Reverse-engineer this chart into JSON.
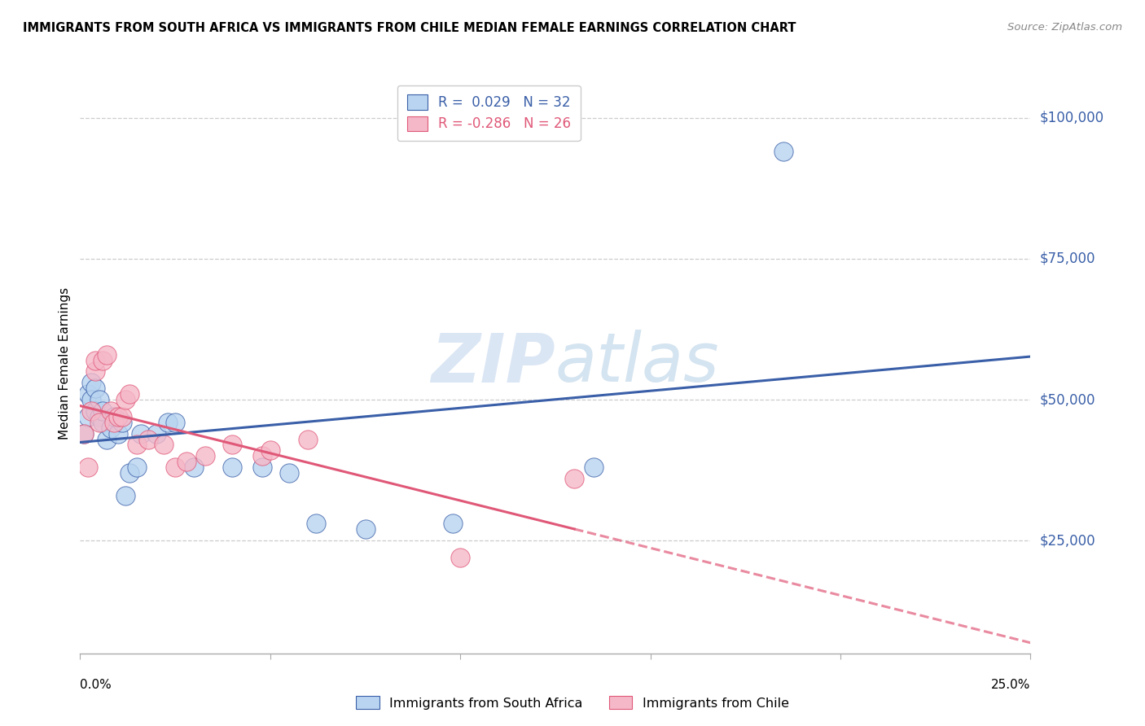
{
  "title": "IMMIGRANTS FROM SOUTH AFRICA VS IMMIGRANTS FROM CHILE MEDIAN FEMALE EARNINGS CORRELATION CHART",
  "source": "Source: ZipAtlas.com",
  "ylabel": "Median Female Earnings",
  "ytick_labels": [
    "$25,000",
    "$50,000",
    "$75,000",
    "$100,000"
  ],
  "ytick_values": [
    25000,
    50000,
    75000,
    100000
  ],
  "ymin": 5000,
  "ymax": 108000,
  "xmin": 0.0,
  "xmax": 0.25,
  "watermark_zip": "ZIP",
  "watermark_atlas": "atlas",
  "legend_line1": "R =  0.029   N = 32",
  "legend_line2": "R = -0.286   N = 26",
  "color_blue": "#b8d4f0",
  "color_pink": "#f5b8c8",
  "trendline_blue": "#3a5fa8",
  "trendline_pink": "#e05878",
  "sa_x": [
    0.001,
    0.002,
    0.002,
    0.003,
    0.003,
    0.004,
    0.004,
    0.005,
    0.005,
    0.006,
    0.006,
    0.007,
    0.008,
    0.009,
    0.01,
    0.011,
    0.012,
    0.013,
    0.015,
    0.016,
    0.02,
    0.023,
    0.025,
    0.03,
    0.04,
    0.048,
    0.055,
    0.062,
    0.075,
    0.098,
    0.135,
    0.185
  ],
  "sa_y": [
    44000,
    51000,
    47000,
    53000,
    50000,
    48000,
    52000,
    47000,
    50000,
    46000,
    48000,
    43000,
    45000,
    47000,
    44000,
    46000,
    33000,
    37000,
    38000,
    44000,
    44000,
    46000,
    46000,
    38000,
    38000,
    38000,
    37000,
    28000,
    27000,
    28000,
    38000,
    94000
  ],
  "chile_x": [
    0.001,
    0.002,
    0.003,
    0.004,
    0.004,
    0.005,
    0.006,
    0.007,
    0.008,
    0.009,
    0.01,
    0.011,
    0.012,
    0.013,
    0.015,
    0.018,
    0.022,
    0.025,
    0.028,
    0.033,
    0.04,
    0.048,
    0.05,
    0.06,
    0.1,
    0.13
  ],
  "chile_y": [
    44000,
    38000,
    48000,
    55000,
    57000,
    46000,
    57000,
    58000,
    48000,
    46000,
    47000,
    47000,
    50000,
    51000,
    42000,
    43000,
    42000,
    38000,
    39000,
    40000,
    42000,
    40000,
    41000,
    43000,
    22000,
    36000
  ],
  "grid_color": "#cccccc",
  "spine_color": "#aaaaaa"
}
